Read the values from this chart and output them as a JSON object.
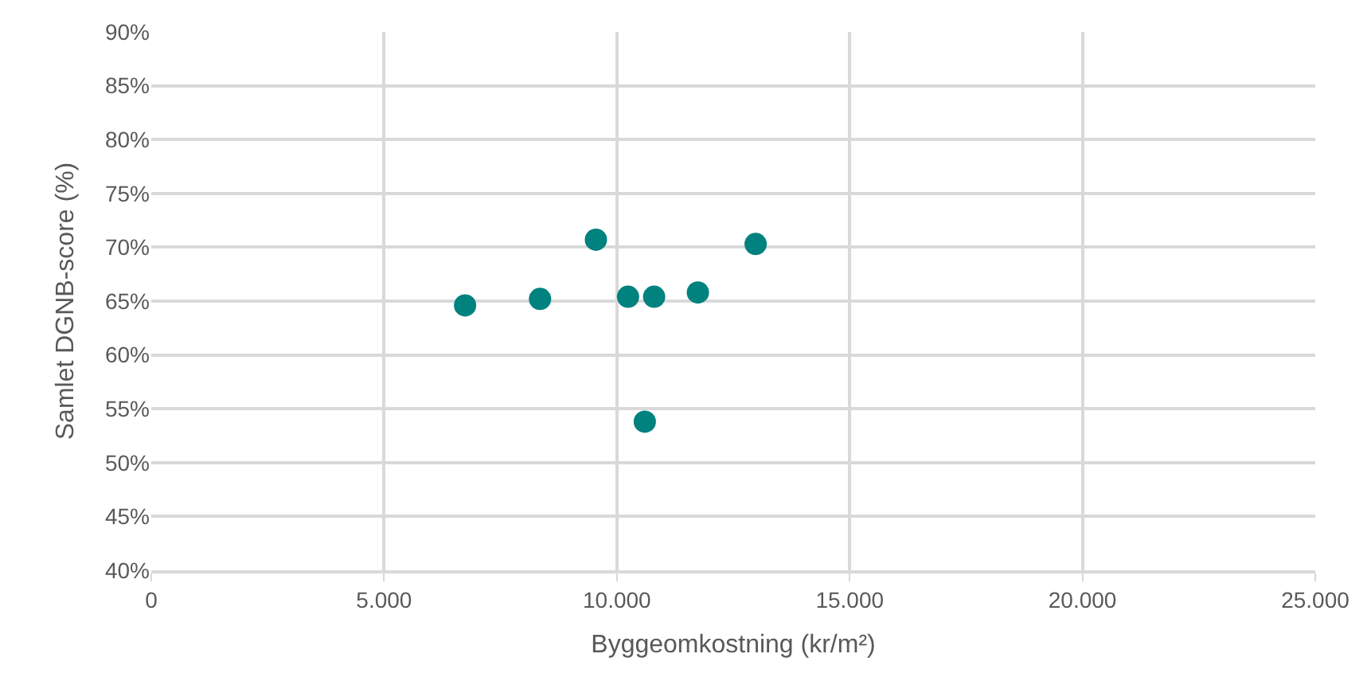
{
  "chart_data": {
    "type": "scatter",
    "xlabel": "Byggeomkostning (kr/m²)",
    "ylabel": "Samlet DGNB-score (%)",
    "x": [
      6740,
      8350,
      9550,
      10240,
      10800,
      11740,
      12980,
      10600
    ],
    "series": [
      {
        "color": "#00827f",
        "values": [
          64.6,
          65.2,
          70.7,
          65.4,
          65.4,
          65.8,
          70.3,
          53.8
        ]
      }
    ],
    "xlim": [
      0,
      25000
    ],
    "xticks": [
      {
        "value": 0,
        "label": "0"
      },
      {
        "value": 5000,
        "label": "5.000"
      },
      {
        "value": 10000,
        "label": "10.000"
      },
      {
        "value": 15000,
        "label": "15.000"
      },
      {
        "value": 20000,
        "label": "20.000"
      },
      {
        "value": 25000,
        "label": "25.000"
      }
    ],
    "ylim": [
      40,
      90
    ],
    "yticks": [
      {
        "value": 40,
        "label": "40%"
      },
      {
        "value": 45,
        "label": "45%"
      },
      {
        "value": 50,
        "label": "50%"
      },
      {
        "value": 55,
        "label": "55%"
      },
      {
        "value": 60,
        "label": "60%"
      },
      {
        "value": 65,
        "label": "65%"
      },
      {
        "value": 70,
        "label": "70%"
      },
      {
        "value": 75,
        "label": "75%"
      },
      {
        "value": 80,
        "label": "80%"
      },
      {
        "value": 85,
        "label": "85%"
      },
      {
        "value": 90,
        "label": "90%"
      }
    ],
    "grid": true,
    "marker": "circle"
  }
}
